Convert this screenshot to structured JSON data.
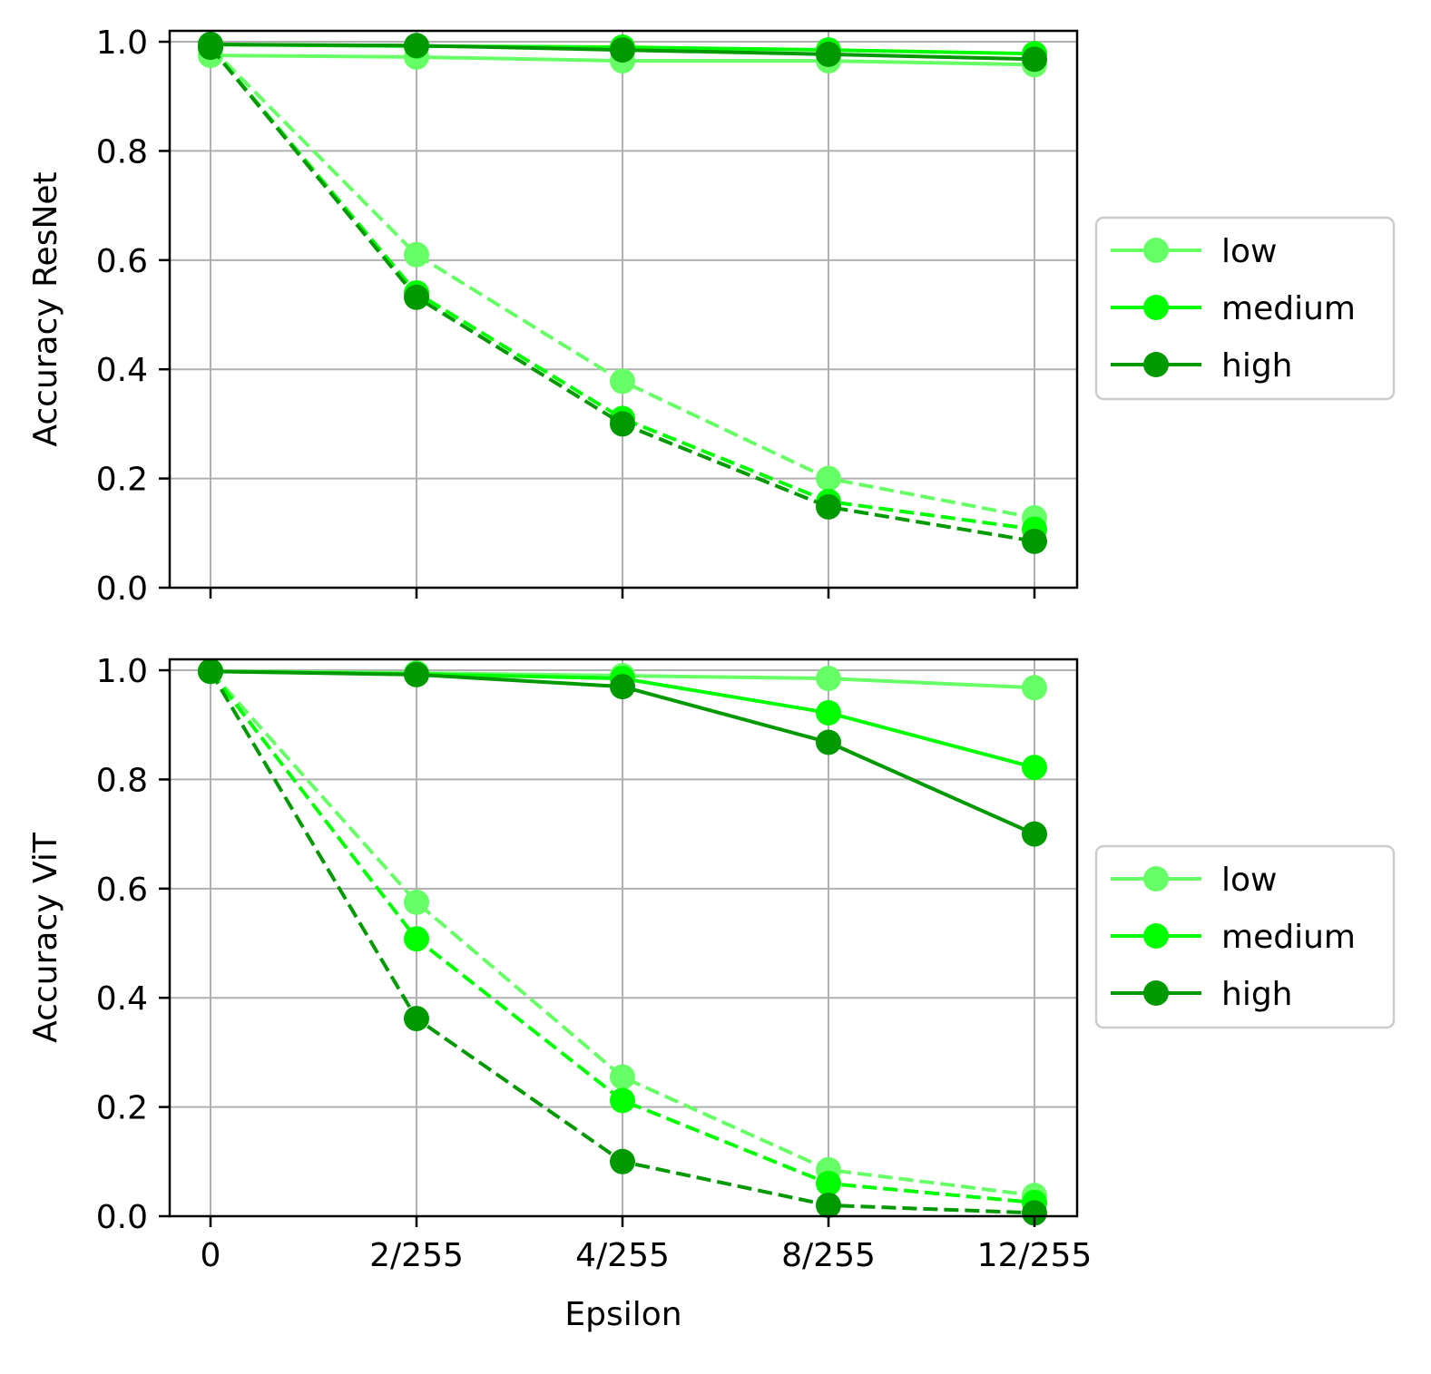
{
  "chart_data": [
    {
      "type": "line",
      "ylabel": "Accuracy ResNet",
      "xlabel": "",
      "categories": [
        "0",
        "2/255",
        "4/255",
        "8/255",
        "12/255"
      ],
      "ylim": [
        0,
        1.02
      ],
      "yticks": [
        "0.0",
        "0.2",
        "0.4",
        "0.6",
        "0.8",
        "1.0"
      ],
      "grid": true,
      "legend_position": "right",
      "legend": [
        "low",
        "medium",
        "high"
      ],
      "series": [
        {
          "name": "low",
          "style": "solid",
          "color": "#66ff66",
          "values": [
            0.975,
            0.972,
            0.965,
            0.965,
            0.958
          ]
        },
        {
          "name": "medium",
          "style": "solid",
          "color": "#00ff00",
          "values": [
            0.995,
            0.992,
            0.99,
            0.985,
            0.978
          ]
        },
        {
          "name": "high",
          "style": "solid",
          "color": "#009900",
          "values": [
            0.995,
            0.993,
            0.985,
            0.977,
            0.968
          ]
        },
        {
          "name": "low",
          "style": "dashed",
          "color": "#66ff66",
          "values": [
            0.99,
            0.61,
            0.378,
            0.2,
            0.128
          ]
        },
        {
          "name": "medium",
          "style": "dashed",
          "color": "#00ff00",
          "values": [
            0.99,
            0.54,
            0.31,
            0.158,
            0.107
          ]
        },
        {
          "name": "high",
          "style": "dashed",
          "color": "#009900",
          "values": [
            0.99,
            0.532,
            0.3,
            0.148,
            0.085
          ]
        }
      ]
    },
    {
      "type": "line",
      "ylabel": "Accuracy ViT",
      "xlabel": "Epsilon",
      "categories": [
        "0",
        "2/255",
        "4/255",
        "8/255",
        "12/255"
      ],
      "ylim": [
        0,
        1.02
      ],
      "yticks": [
        "0.0",
        "0.2",
        "0.4",
        "0.6",
        "0.8",
        "1.0"
      ],
      "grid": true,
      "legend_position": "right",
      "legend": [
        "low",
        "medium",
        "high"
      ],
      "series": [
        {
          "name": "low",
          "style": "solid",
          "color": "#66ff66",
          "values": [
            0.998,
            0.995,
            0.99,
            0.985,
            0.968
          ]
        },
        {
          "name": "medium",
          "style": "solid",
          "color": "#00ff00",
          "values": [
            0.998,
            0.993,
            0.985,
            0.922,
            0.822
          ]
        },
        {
          "name": "high",
          "style": "solid",
          "color": "#009900",
          "values": [
            0.998,
            0.992,
            0.97,
            0.868,
            0.7
          ]
        },
        {
          "name": "low",
          "style": "dashed",
          "color": "#66ff66",
          "values": [
            0.998,
            0.575,
            0.255,
            0.085,
            0.038
          ]
        },
        {
          "name": "medium",
          "style": "dashed",
          "color": "#00ff00",
          "values": [
            0.998,
            0.508,
            0.212,
            0.06,
            0.025
          ]
        },
        {
          "name": "high",
          "style": "dashed",
          "color": "#009900",
          "values": [
            0.998,
            0.362,
            0.1,
            0.02,
            0.006
          ]
        }
      ]
    }
  ]
}
